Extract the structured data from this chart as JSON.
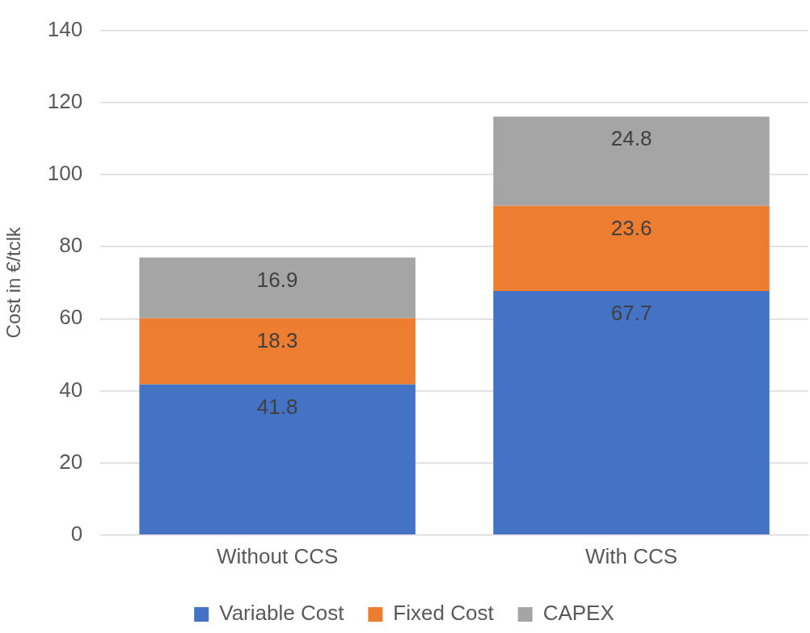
{
  "chart_data": {
    "type": "bar",
    "stacked": true,
    "ylabel": "Cost in €/tclk",
    "categories": [
      "Without CCS",
      "With CCS"
    ],
    "series": [
      {
        "name": "Variable Cost",
        "color": "#4472c4",
        "values": [
          41.8,
          67.7
        ]
      },
      {
        "name": "Fixed Cost",
        "color": "#ed7d31",
        "values": [
          18.3,
          23.6
        ]
      },
      {
        "name": "CAPEX",
        "color": "#a5a5a5",
        "values": [
          16.9,
          24.8
        ]
      }
    ],
    "ylim": [
      0,
      140
    ],
    "yticks": [
      0,
      20,
      40,
      60,
      80,
      100,
      120,
      140
    ],
    "grid": "y",
    "legend": "bottom",
    "data_labels": true
  }
}
